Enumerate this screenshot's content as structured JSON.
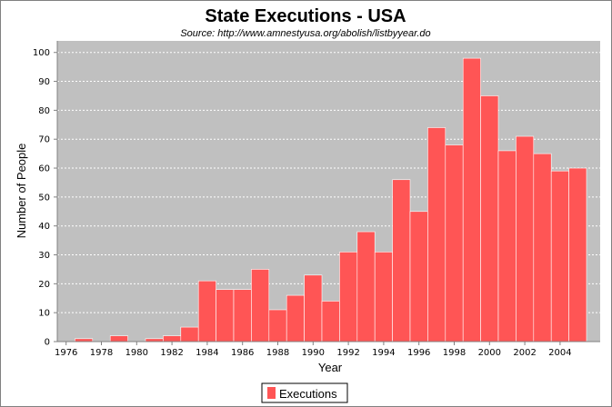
{
  "chart_data": {
    "type": "bar",
    "title": "State Executions - USA",
    "subtitle": "Source: http://www.amnestyusa.org/abolish/listbyyear.do",
    "xlabel": "Year",
    "ylabel": "Number of People",
    "x": [
      1976,
      1977,
      1978,
      1979,
      1980,
      1981,
      1982,
      1983,
      1984,
      1985,
      1986,
      1987,
      1988,
      1989,
      1990,
      1991,
      1992,
      1993,
      1994,
      1995,
      1996,
      1997,
      1998,
      1999,
      2000,
      2001,
      2002,
      2003,
      2004,
      2005
    ],
    "series": [
      {
        "name": "Executions",
        "color": "#ff5555",
        "values": [
          0,
          1,
          0,
          2,
          0,
          1,
          2,
          5,
          21,
          18,
          18,
          25,
          11,
          16,
          23,
          14,
          31,
          38,
          31,
          56,
          45,
          74,
          68,
          98,
          85,
          66,
          71,
          65,
          59,
          60
        ]
      }
    ],
    "x_tick_labels": [
      "1976",
      "1978",
      "1980",
      "1982",
      "1984",
      "1986",
      "1988",
      "1990",
      "1992",
      "1994",
      "1996",
      "1998",
      "2000",
      "2002",
      "2004"
    ],
    "y_tick_labels": [
      "0",
      "10",
      "20",
      "30",
      "40",
      "50",
      "60",
      "70",
      "80",
      "90",
      "100"
    ],
    "ylim": [
      0,
      104
    ],
    "grid": true,
    "plot_background": "#c0c0c0",
    "legend_position": "bottom-center"
  }
}
